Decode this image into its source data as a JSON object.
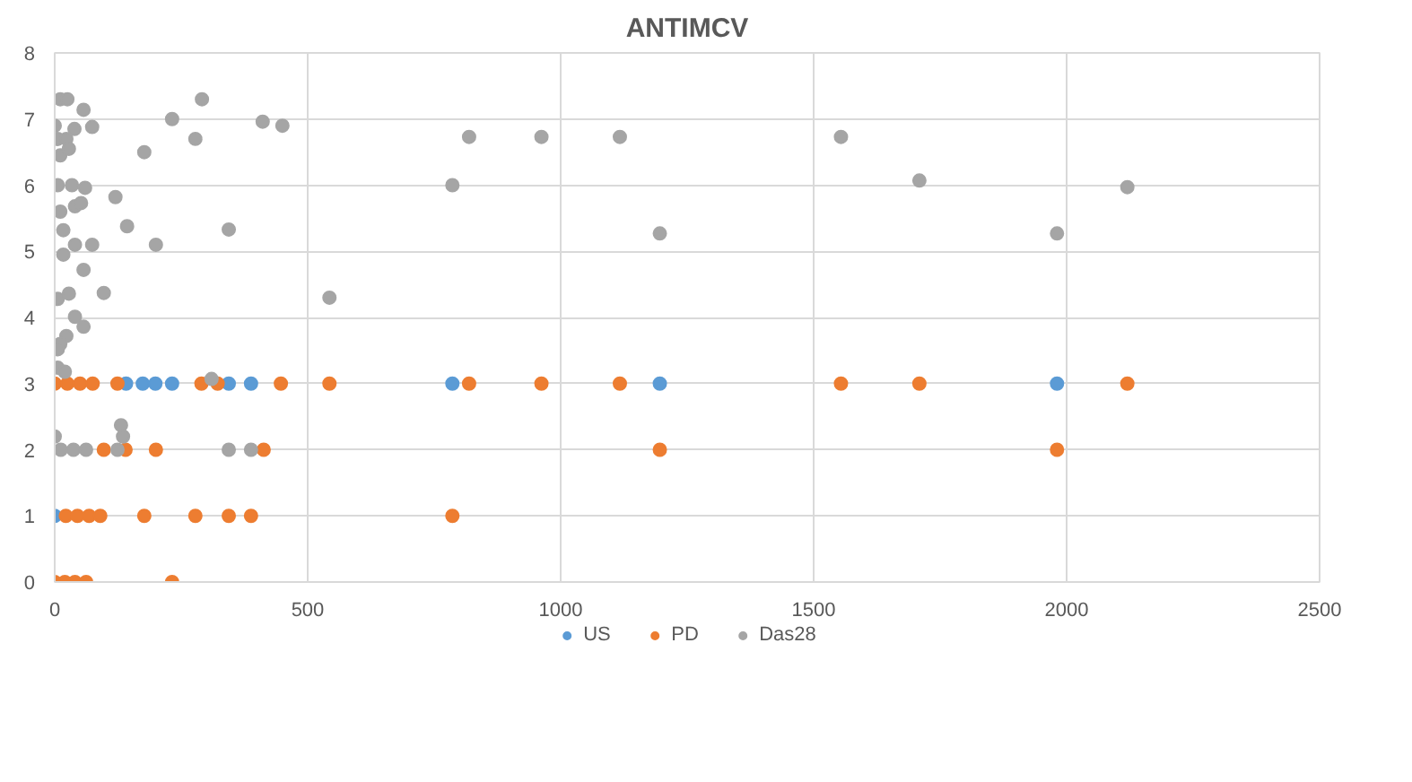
{
  "chart_data": {
    "type": "scatter",
    "title": "ANTIMCV",
    "xlim": [
      0,
      2500
    ],
    "ylim": [
      0,
      8
    ],
    "xticks": [
      0,
      500,
      1000,
      1500,
      2000,
      2500
    ],
    "yticks": [
      0,
      1,
      2,
      3,
      4,
      5,
      6,
      7,
      8
    ],
    "grid": true,
    "legend": "bottom",
    "marker": "circle",
    "series": [
      {
        "name": "US",
        "color": "#5b9bd5",
        "x": [
          0,
          141,
          174,
          199,
          232,
          344,
          388,
          786,
          1196,
          1981
        ],
        "values": [
          1,
          3,
          3,
          3,
          3,
          3,
          3,
          3,
          3,
          3
        ]
      },
      {
        "name": "PD",
        "color": "#ed7d31",
        "x": [
          0,
          25,
          50,
          75,
          124,
          290,
          322,
          447,
          543,
          819,
          962,
          1117,
          1554,
          1709,
          2120,
          97,
          140,
          200,
          413,
          1196,
          1981,
          22,
          45,
          68,
          90,
          177,
          278,
          344,
          388,
          786,
          0,
          20,
          40,
          62,
          232
        ],
        "values": [
          3,
          3,
          3,
          3,
          3,
          3,
          3,
          3,
          3,
          3,
          3,
          3,
          3,
          3,
          3,
          2,
          2,
          2,
          2,
          2,
          2,
          1,
          1,
          1,
          1,
          1,
          1,
          1,
          1,
          1,
          0,
          0,
          0,
          0,
          0
        ]
      },
      {
        "name": "Das28",
        "color": "#a5a5a5",
        "x": [
          0,
          11,
          25,
          57,
          74,
          39,
          6,
          23,
          11,
          28,
          6,
          34,
          60,
          11,
          40,
          52,
          120,
          17,
          143,
          40,
          74,
          200,
          17,
          57,
          6,
          28,
          97,
          40,
          57,
          23,
          11,
          6,
          6,
          20,
          310,
          0,
          131,
          135,
          12,
          37,
          62,
          124,
          344,
          388,
          177,
          232,
          278,
          291,
          344,
          411,
          450,
          543,
          786,
          819,
          962,
          1117,
          1196,
          1554,
          1709,
          1981,
          2120
        ],
        "values": [
          6.9,
          7.3,
          7.3,
          7.14,
          6.88,
          6.85,
          6.7,
          6.7,
          6.45,
          6.55,
          6.0,
          6.0,
          5.96,
          5.6,
          5.68,
          5.73,
          5.82,
          5.32,
          5.38,
          5.1,
          5.1,
          5.1,
          4.95,
          4.72,
          4.28,
          4.36,
          4.37,
          4.01,
          3.86,
          3.72,
          3.6,
          3.52,
          3.24,
          3.18,
          3.07,
          2.2,
          2.37,
          2.2,
          2,
          2,
          2,
          2,
          2,
          2,
          6.5,
          7.0,
          6.7,
          7.3,
          5.33,
          6.96,
          6.9,
          4.3,
          6.0,
          6.73,
          6.73,
          6.73,
          5.27,
          6.73,
          6.07,
          5.27,
          5.97
        ]
      }
    ]
  }
}
